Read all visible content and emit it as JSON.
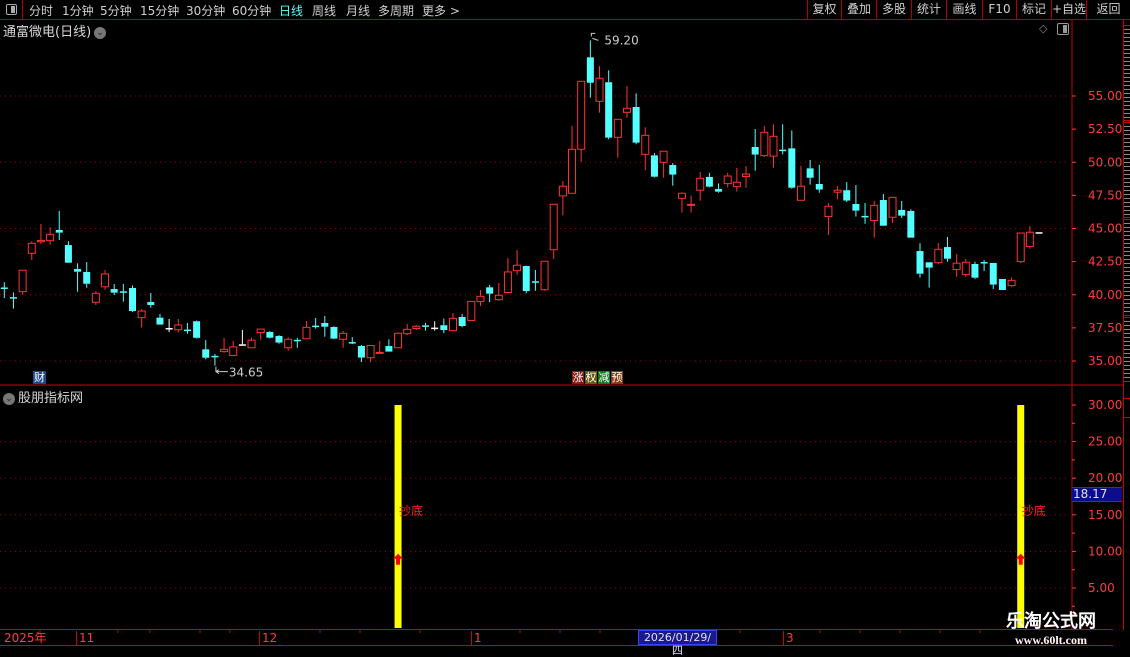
{
  "toolbar": {
    "tabs": [
      {
        "label": "分时"
      },
      {
        "label": "1分钟"
      },
      {
        "label": "5分钟"
      },
      {
        "label": "15分钟"
      },
      {
        "label": "30分钟"
      },
      {
        "label": "60分钟"
      },
      {
        "label": "日线",
        "active": true
      },
      {
        "label": "周线"
      },
      {
        "label": "月线"
      },
      {
        "label": "多周期"
      },
      {
        "label": "更多 >"
      }
    ],
    "buttons": [
      {
        "label": "复权"
      },
      {
        "label": "叠加"
      },
      {
        "label": "多股"
      },
      {
        "label": "统计"
      },
      {
        "label": "画线"
      },
      {
        "label": "F10"
      },
      {
        "label": "标记"
      },
      {
        "label": "+自选"
      },
      {
        "label": "返回"
      }
    ]
  },
  "main_panel": {
    "title": "通富微电(日线)",
    "high_marker": "59.20",
    "low_marker": "34.65",
    "badge_finance": "财",
    "event_badges": [
      "涨",
      "权",
      "减",
      "预"
    ]
  },
  "indicator_panel": {
    "title": "股朋指标网",
    "signal_label": "抄底",
    "current_value": "18.17"
  },
  "x_axis": {
    "labels": [
      "2025年",
      "11",
      "12",
      "1",
      "3"
    ],
    "selected_date": "2026/01/29/四"
  },
  "watermark": {
    "line1": "乐淘公式网",
    "line2": "www.60lt.com"
  },
  "colors": {
    "up": "#ff3232",
    "down": "#54ffff",
    "doji": "#ffffff",
    "axis": "#ff3c3c",
    "signal_bar": "#ffff00",
    "signal_arrow": "#ff0000",
    "active_tab": "#54ffff"
  },
  "chart_data": [
    {
      "type": "candlestick",
      "title": "通富微电(日线)",
      "y_ticks": [
        "55.00",
        "52.50",
        "50.00",
        "47.50",
        "45.00",
        "42.50",
        "40.00",
        "37.50",
        "35.00"
      ],
      "ylim": [
        33.2,
        59.4
      ],
      "grid": true,
      "ohlc_order": [
        "open",
        "high",
        "low",
        "close"
      ],
      "ohlc": [
        [
          40.55,
          40.95,
          39.75,
          40.45
        ],
        [
          39.82,
          40.18,
          38.95,
          39.75
        ],
        [
          40.23,
          41.85,
          40.0,
          41.85
        ],
        [
          43.13,
          44.04,
          42.62,
          43.88
        ],
        [
          44.0,
          45.34,
          43.85,
          44.1
        ],
        [
          44.08,
          45.09,
          43.78,
          44.56
        ],
        [
          44.89,
          46.32,
          44.13,
          44.69
        ],
        [
          43.75,
          44.04,
          42.4,
          42.42
        ],
        [
          41.94,
          42.37,
          40.23,
          41.74
        ],
        [
          41.72,
          42.47,
          40.53,
          40.83
        ],
        [
          39.43,
          40.28,
          39.23,
          40.11
        ],
        [
          40.6,
          41.87,
          40.38,
          41.57
        ],
        [
          40.43,
          40.81,
          39.98,
          40.16
        ],
        [
          40.26,
          40.81,
          39.48,
          40.2
        ],
        [
          40.51,
          40.7,
          38.7,
          38.77
        ],
        [
          38.27,
          38.92,
          37.53,
          38.77
        ],
        [
          39.45,
          40.13,
          39.02,
          39.23
        ],
        [
          38.27,
          38.55,
          37.75,
          37.75
        ],
        [
          37.49,
          38.17,
          37.19,
          37.49
        ],
        [
          37.36,
          38.17,
          37.15,
          37.72
        ],
        [
          37.37,
          37.87,
          37.06,
          37.34
        ],
        [
          38.0,
          38.05,
          36.7,
          36.75
        ],
        [
          35.88,
          36.58,
          35.13,
          35.25
        ],
        [
          35.39,
          35.53,
          34.65,
          35.35
        ],
        [
          35.71,
          36.74,
          35.63,
          35.88
        ],
        [
          35.41,
          36.51,
          35.41,
          36.06
        ],
        [
          36.26,
          37.34,
          36.21,
          36.26
        ],
        [
          36.0,
          36.76,
          36.0,
          36.57
        ],
        [
          37.15,
          37.41,
          36.6,
          37.41
        ],
        [
          37.19,
          37.25,
          36.7,
          36.76
        ],
        [
          36.89,
          36.95,
          36.3,
          36.39
        ],
        [
          36.0,
          36.8,
          35.77,
          36.64
        ],
        [
          36.6,
          36.74,
          36.0,
          36.56
        ],
        [
          36.68,
          38.02,
          36.68,
          37.54
        ],
        [
          37.67,
          38.25,
          37.44,
          37.62
        ],
        [
          37.87,
          38.4,
          36.83,
          37.59
        ],
        [
          37.57,
          37.62,
          36.65,
          36.69
        ],
        [
          36.64,
          37.26,
          36.0,
          37.09
        ],
        [
          36.43,
          36.8,
          36.28,
          36.4
        ],
        [
          36.13,
          36.21,
          34.92,
          35.26
        ],
        [
          35.25,
          36.2,
          34.92,
          36.17
        ],
        [
          35.62,
          36.51,
          35.56,
          35.65
        ],
        [
          36.13,
          36.64,
          35.71,
          35.71
        ],
        [
          36.0,
          37.15,
          36.0,
          37.09
        ],
        [
          37.06,
          37.79,
          36.96,
          37.39
        ],
        [
          37.45,
          37.7,
          37.35,
          37.62
        ],
        [
          37.69,
          37.87,
          37.29,
          37.66
        ],
        [
          37.52,
          38.0,
          37.29,
          37.52
        ],
        [
          37.7,
          38.2,
          37.1,
          37.34
        ],
        [
          37.29,
          38.62,
          37.29,
          38.22
        ],
        [
          38.32,
          38.55,
          37.55,
          37.64
        ],
        [
          38.05,
          39.5,
          38.05,
          39.5
        ],
        [
          39.48,
          40.36,
          39.15,
          39.88
        ],
        [
          40.56,
          40.74,
          39.45,
          40.08
        ],
        [
          39.63,
          40.89,
          39.55,
          39.96
        ],
        [
          40.17,
          42.77,
          40.17,
          41.72
        ],
        [
          41.82,
          43.38,
          41.51,
          42.23
        ],
        [
          42.17,
          42.2,
          40.11,
          40.28
        ],
        [
          41.02,
          41.87,
          40.3,
          41.0
        ],
        [
          40.38,
          42.53,
          40.3,
          42.53
        ],
        [
          43.4,
          46.83,
          42.7,
          46.83
        ],
        [
          47.46,
          48.58,
          46.0,
          48.19
        ],
        [
          47.66,
          52.74,
          47.66,
          50.98
        ],
        [
          50.98,
          56.11,
          50.04,
          56.11
        ],
        [
          57.92,
          59.2,
          54.87,
          56.0
        ],
        [
          54.6,
          57.26,
          53.74,
          56.34
        ],
        [
          56.04,
          56.94,
          51.73,
          51.86
        ],
        [
          51.88,
          53.24,
          50.34,
          53.24
        ],
        [
          53.77,
          55.75,
          53.36,
          54.07
        ],
        [
          54.17,
          55.2,
          51.36,
          51.48
        ],
        [
          50.6,
          52.64,
          49.39,
          52.03
        ],
        [
          50.52,
          50.7,
          48.85,
          48.91
        ],
        [
          50.0,
          50.83,
          48.83,
          50.83
        ],
        [
          49.79,
          49.94,
          48.23,
          49.07
        ],
        [
          47.28,
          47.73,
          46.2,
          47.66
        ],
        [
          46.78,
          47.48,
          46.2,
          46.82
        ],
        [
          47.89,
          49.26,
          47.1,
          48.79
        ],
        [
          48.89,
          49.2,
          48.1,
          48.16
        ],
        [
          47.98,
          48.4,
          47.7,
          47.78
        ],
        [
          48.39,
          49.2,
          48.1,
          48.96
        ],
        [
          48.16,
          49.57,
          47.78,
          48.49
        ],
        [
          48.92,
          49.72,
          48.08,
          49.11
        ],
        [
          51.15,
          52.51,
          49.36,
          50.58
        ],
        [
          50.5,
          52.74,
          50.4,
          52.26
        ],
        [
          50.46,
          52.86,
          49.59,
          51.96
        ],
        [
          50.95,
          52.86,
          50.6,
          50.92
        ],
        [
          51.05,
          52.4,
          48.0,
          48.08
        ],
        [
          47.13,
          49.72,
          47.13,
          48.19
        ],
        [
          49.54,
          50.17,
          48.31,
          48.83
        ],
        [
          48.36,
          49.8,
          47.7,
          47.94
        ],
        [
          45.9,
          46.92,
          44.51,
          46.68
        ],
        [
          47.74,
          48.2,
          47.2,
          47.89
        ],
        [
          47.89,
          48.5,
          47.0,
          47.11
        ],
        [
          46.85,
          48.28,
          45.9,
          46.35
        ],
        [
          45.95,
          46.92,
          45.36,
          45.92
        ],
        [
          45.6,
          47.08,
          44.31,
          46.75
        ],
        [
          47.15,
          47.6,
          45.2,
          45.21
        ],
        [
          45.85,
          47.35,
          45.42,
          47.35
        ],
        [
          46.4,
          47.08,
          45.8,
          45.97
        ],
        [
          46.32,
          46.45,
          44.31,
          44.31
        ],
        [
          43.3,
          43.9,
          41.29,
          41.59
        ],
        [
          42.45,
          42.45,
          40.54,
          42.05
        ],
        [
          42.42,
          43.9,
          42.3,
          43.43
        ],
        [
          43.6,
          44.36,
          42.49,
          42.72
        ],
        [
          41.9,
          43.08,
          41.36,
          42.38
        ],
        [
          41.52,
          42.7,
          41.35,
          42.45
        ],
        [
          42.32,
          42.5,
          41.2,
          41.29
        ],
        [
          42.47,
          42.62,
          41.79,
          42.45
        ],
        [
          42.4,
          42.4,
          40.43,
          40.77
        ],
        [
          41.19,
          41.19,
          40.36,
          40.36
        ],
        [
          40.69,
          41.3,
          40.6,
          41.09
        ],
        [
          42.5,
          44.66,
          42.4,
          44.66
        ],
        [
          43.64,
          45.19,
          43.47,
          44.72
        ],
        [
          44.72,
          44.72,
          44.72,
          44.72
        ]
      ],
      "high_value": 59.2,
      "low_value": 34.65
    },
    {
      "type": "bar",
      "title": "股朋指标网",
      "y_ticks": [
        "30.00",
        "25.00",
        "20.00",
        "15.00",
        "10.00",
        "5.00"
      ],
      "ylim": [
        -0.7,
        31
      ],
      "grid": true,
      "signals": [
        {
          "candle": 44,
          "bar_value": 30,
          "arrow_value": 9,
          "label": "抄底"
        },
        {
          "candle": 112,
          "bar_value": 30,
          "arrow_value": 9,
          "label": "抄底"
        }
      ],
      "current_value": 18.17
    }
  ]
}
